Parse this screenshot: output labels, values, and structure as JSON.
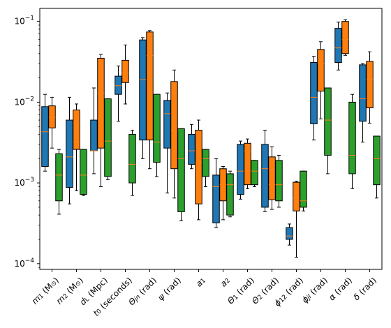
{
  "chart_data": {
    "type": "boxplot",
    "yscale": "log",
    "ylim": [
      8.5e-05,
      0.145
    ],
    "yticks": [
      {
        "value": 0.0001,
        "base": "10",
        "exp": "−4"
      },
      {
        "value": 0.001,
        "base": "10",
        "exp": "−3"
      },
      {
        "value": 0.01,
        "base": "10",
        "exp": "−2"
      },
      {
        "value": 0.1,
        "base": "10",
        "exp": "−1"
      }
    ],
    "categories": [
      {
        "main": "m",
        "sub": "1",
        "rest": " (M",
        "sun": "⊙",
        "close": ")"
      },
      {
        "main": "m",
        "sub": "2",
        "rest": " (M",
        "sun": "⊙",
        "close": ")"
      },
      {
        "main": "d",
        "sub": "L",
        "rest": " (Mpc)",
        "sun": "",
        "close": ""
      },
      {
        "main": "t",
        "sub": "0",
        "rest": " (seconds)",
        "sun": "",
        "close": ""
      },
      {
        "main": "Θ",
        "sub": "jn",
        "rest": " (rad)",
        "sun": "",
        "close": ""
      },
      {
        "main": "ψ",
        "sub": "",
        "rest": " (rad)",
        "sun": "",
        "close": ""
      },
      {
        "main": "a",
        "sub": "1",
        "rest": "",
        "sun": "",
        "close": ""
      },
      {
        "main": "a",
        "sub": "2",
        "rest": "",
        "sun": "",
        "close": ""
      },
      {
        "main": "Θ",
        "sub": "1",
        "rest": " (rad)",
        "sun": "",
        "close": ""
      },
      {
        "main": "Θ",
        "sub": "2",
        "rest": " (rad)",
        "sun": "",
        "close": ""
      },
      {
        "main": "ϕ",
        "sub": "12",
        "rest": " (rad)",
        "sun": "",
        "close": ""
      },
      {
        "main": "ϕ",
        "sub": "jl",
        "rest": " (rad)",
        "sun": "",
        "close": ""
      },
      {
        "main": "α",
        "sub": "",
        "rest": " (rad)",
        "sun": "",
        "close": ""
      },
      {
        "main": "δ",
        "sub": "",
        "rest": " (rad)",
        "sun": "",
        "close": ""
      }
    ],
    "series": [
      {
        "color": "#1f77b4",
        "boxes": [
          {
            "whislo": 0.0014,
            "q1": 0.0016,
            "med": 0.0043,
            "q3": 0.0088,
            "whishi": 0.0125
          },
          {
            "whislo": 0.00055,
            "q1": 0.00088,
            "med": 0.0021,
            "q3": 0.006,
            "whishi": 0.0115
          },
          {
            "whislo": 0.0013,
            "q1": 0.0025,
            "med": 0.0025,
            "q3": 0.006,
            "whishi": 0.015
          },
          {
            "whislo": 0.0058,
            "q1": 0.0125,
            "med": 0.016,
            "q3": 0.021,
            "whishi": 0.028
          },
          {
            "whislo": 0.002,
            "q1": 0.0034,
            "med": 0.019,
            "q3": 0.059,
            "whishi": 0.063
          },
          {
            "whislo": 0.00075,
            "q1": 0.0027,
            "med": 0.0072,
            "q3": 0.0105,
            "whishi": 0.013
          },
          {
            "whislo": 0.0015,
            "q1": 0.0017,
            "med": 0.0025,
            "q3": 0.004,
            "whishi": 0.0053
          },
          {
            "whislo": 0.00028,
            "q1": 0.00032,
            "med": 0.0009,
            "q3": 0.00125,
            "whishi": 0.002
          },
          {
            "whislo": 0.00063,
            "q1": 0.00072,
            "med": 0.0014,
            "q3": 0.003,
            "whishi": 0.0033
          },
          {
            "whislo": 0.00044,
            "q1": 0.0005,
            "med": 0.0015,
            "q3": 0.003,
            "whishi": 0.0045
          },
          {
            "whislo": 0.00017,
            "q1": 0.0002,
            "med": 0.00022,
            "q3": 0.00028,
            "whishi": 0.00031
          },
          {
            "whislo": 0.0034,
            "q1": 0.0054,
            "med": 0.0115,
            "q3": 0.031,
            "whishi": 0.037
          },
          {
            "whislo": 0.025,
            "q1": 0.031,
            "med": 0.047,
            "q3": 0.082,
            "whishi": 0.098
          },
          {
            "whislo": 0.0032,
            "q1": 0.0058,
            "med": 0.011,
            "q3": 0.029,
            "whishi": 0.03
          }
        ]
      },
      {
        "color": "#ff7f0e",
        "boxes": [
          {
            "whislo": 0.0027,
            "q1": 0.0048,
            "med": 0.0065,
            "q3": 0.009,
            "whishi": 0.0115
          },
          {
            "whislo": 0.0008,
            "q1": 0.0026,
            "med": 0.0032,
            "q3": 0.008,
            "whishi": 0.0095
          },
          {
            "whislo": 0.0009,
            "q1": 0.0027,
            "med": 0.013,
            "q3": 0.035,
            "whishi": 0.039
          },
          {
            "whislo": 0.0095,
            "q1": 0.0175,
            "med": 0.023,
            "q3": 0.033,
            "whishi": 0.051
          },
          {
            "whislo": 0.0015,
            "q1": 0.0034,
            "med": 0.038,
            "q3": 0.074,
            "whishi": 0.077
          },
          {
            "whislo": 0.00065,
            "q1": 0.0015,
            "med": 0.0045,
            "q3": 0.018,
            "whishi": 0.025
          },
          {
            "whislo": 0.00035,
            "q1": 0.00055,
            "med": 0.0018,
            "q3": 0.0045,
            "whishi": 0.006
          },
          {
            "whislo": 0.00035,
            "q1": 0.0006,
            "med": 0.00095,
            "q3": 0.0015,
            "whishi": 0.0016
          },
          {
            "whislo": 0.00085,
            "q1": 0.00095,
            "med": 0.0025,
            "q3": 0.0031,
            "whishi": 0.0035
          },
          {
            "whislo": 0.00047,
            "q1": 0.00062,
            "med": 0.00095,
            "q3": 0.0021,
            "whishi": 0.0028
          },
          {
            "whislo": 0.00012,
            "q1": 0.00045,
            "med": 0.00065,
            "q3": 0.00102,
            "whishi": 0.00105
          },
          {
            "whislo": 0.0062,
            "q1": 0.0137,
            "med": 0.03,
            "q3": 0.045,
            "whishi": 0.056
          },
          {
            "whislo": 0.038,
            "q1": 0.04,
            "med": 0.06,
            "q3": 0.1,
            "whishi": 0.105
          },
          {
            "whislo": 0.0055,
            "q1": 0.0085,
            "med": 0.019,
            "q3": 0.032,
            "whishi": 0.042
          }
        ]
      },
      {
        "color": "#2ca02c",
        "boxes": [
          {
            "whislo": 0.00041,
            "q1": 0.0006,
            "med": 0.00125,
            "q3": 0.0023,
            "whishi": 0.0026
          },
          {
            "whislo": 0.0007,
            "q1": 0.00072,
            "med": 0.00125,
            "q3": 0.0026,
            "whishi": 0.0026
          },
          {
            "whislo": 0.0011,
            "q1": 0.0012,
            "med": 0.0033,
            "q3": 0.011,
            "whishi": 0.011
          },
          {
            "whislo": 0.0007,
            "q1": 0.001,
            "med": 0.0017,
            "q3": 0.004,
            "whishi": 0.0045
          },
          {
            "whislo": 0.0012,
            "q1": 0.0018,
            "med": 0.0032,
            "q3": 0.0125,
            "whishi": 0.0125
          },
          {
            "whislo": 0.00034,
            "q1": 0.00044,
            "med": 0.002,
            "q3": 0.0047,
            "whishi": 0.0047
          },
          {
            "whislo": 0.0009,
            "q1": 0.0012,
            "med": 0.002,
            "q3": 0.0026,
            "whishi": 0.0026
          },
          {
            "whislo": 0.00038,
            "q1": 0.0004,
            "med": 0.00095,
            "q3": 0.0013,
            "whishi": 0.0014
          },
          {
            "whislo": 0.0009,
            "q1": 0.00095,
            "med": 0.0014,
            "q3": 0.0019,
            "whishi": 0.0019
          },
          {
            "whislo": 0.0005,
            "q1": 0.0006,
            "med": 0.00095,
            "q3": 0.0019,
            "whishi": 0.0022
          },
          {
            "whislo": 0.00045,
            "q1": 0.0005,
            "med": 0.0006,
            "q3": 0.0014,
            "whishi": 0.0014
          },
          {
            "whislo": 0.0013,
            "q1": 0.0022,
            "med": 0.006,
            "q3": 0.015,
            "whishi": 0.015
          },
          {
            "whislo": 0.00085,
            "q1": 0.0013,
            "med": 0.0022,
            "q3": 0.01,
            "whishi": 0.0125
          },
          {
            "whislo": 0.00065,
            "q1": 0.00095,
            "med": 0.002,
            "q3": 0.0038,
            "whishi": 0.0038
          }
        ]
      }
    ],
    "median_color": "#ff7f0e",
    "legend": "none",
    "grid": false,
    "title": "",
    "xlabel": "",
    "ylabel": ""
  }
}
